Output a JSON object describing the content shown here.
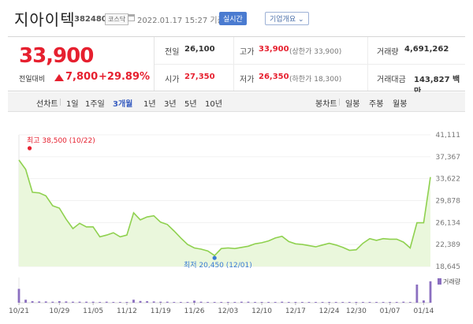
{
  "header": {
    "title": "지아이텍",
    "code": "382480",
    "market": "코스닥",
    "datetime": "2022.01.17 15:27 기준(장중)",
    "live_label": "실시간",
    "corp_label": "기업개요 ⌄"
  },
  "quote": {
    "price": "33,900",
    "change_label": "전일대비",
    "change": "7,800",
    "change_pct": "+29.89%",
    "prev_label": "전일",
    "prev": "26,100",
    "high_label": "고가",
    "high": "33,900",
    "upper_limit": "(상한가 33,900)",
    "volume_label": "거래량",
    "volume": "4,691,262",
    "open_label": "시가",
    "open": "27,350",
    "low_label": "저가",
    "low": "26,350",
    "lower_limit": "(하한가 18,300)",
    "amount_label": "거래대금",
    "amount": "143,827 백만"
  },
  "tabs": {
    "line_label": "선차트",
    "periods": [
      "1일",
      "1주일",
      "3개월",
      "1년",
      "3년",
      "5년",
      "10년"
    ],
    "active_period": "3개월",
    "candle_label": "봉차트",
    "candle_periods": [
      "일봉",
      "주봉",
      "월봉"
    ]
  },
  "colors": {
    "up": "#e6202f",
    "line": "#8fd14f",
    "area": "#eaf7dc",
    "volume": "#8b6fc0",
    "accent": "#3a5fc1"
  },
  "chart_data": {
    "type": "area",
    "title": "",
    "xlabel": "",
    "ylabel": "",
    "ylim": [
      18645,
      41111
    ],
    "y_ticks": [
      "41,111",
      "37,367",
      "33,622",
      "29,878",
      "26,134",
      "22,389",
      "18,645"
    ],
    "x_ticks": [
      "10/21",
      "10/29",
      "11/05",
      "11/12",
      "11/19",
      "11/26",
      "12/03",
      "12/10",
      "12/17",
      "12/24",
      "12/30",
      "01/07",
      "01/14"
    ],
    "max_label": "최고 38,500 (10/22)",
    "min_label": "최저 20,450 (12/01)",
    "volume_label": "거래량",
    "series": [
      {
        "name": "",
        "dates": [
          "10/21",
          "10/22",
          "10/25",
          "10/26",
          "10/27",
          "10/28",
          "10/29",
          "11/01",
          "11/02",
          "11/03",
          "11/04",
          "11/05",
          "11/08",
          "11/09",
          "11/10",
          "11/11",
          "11/12",
          "11/15",
          "11/16",
          "11/17",
          "11/18",
          "11/19",
          "11/22",
          "11/23",
          "11/24",
          "11/25",
          "11/26",
          "11/29",
          "11/30",
          "12/01",
          "12/02",
          "12/03",
          "12/06",
          "12/07",
          "12/08",
          "12/09",
          "12/10",
          "12/13",
          "12/14",
          "12/15",
          "12/16",
          "12/17",
          "12/20",
          "12/21",
          "12/22",
          "12/23",
          "12/24",
          "12/27",
          "12/28",
          "12/29",
          "12/30",
          "01/03",
          "01/04",
          "01/05",
          "01/06",
          "01/07",
          "01/10",
          "01/11",
          "01/12",
          "01/13",
          "01/14",
          "01/17"
        ],
        "values": [
          36800,
          35200,
          31300,
          31200,
          30700,
          29000,
          28600,
          26700,
          25100,
          26000,
          25400,
          25400,
          23700,
          24000,
          24400,
          23700,
          24000,
          27800,
          26600,
          27100,
          27300,
          26200,
          25800,
          24700,
          23500,
          22400,
          21800,
          21600,
          21300,
          20500,
          21700,
          21800,
          21700,
          21900,
          22100,
          22500,
          22700,
          23000,
          23500,
          23800,
          22900,
          22500,
          22400,
          22200,
          22000,
          22300,
          22600,
          22300,
          21900,
          21400,
          21500,
          22600,
          23400,
          23100,
          23400,
          23300,
          23300,
          22800,
          21800,
          26100,
          26100,
          33900
        ]
      }
    ],
    "volume": [
      0.55,
      0.12,
      0.06,
      0.05,
      0.05,
      0.04,
      0.06,
      0.05,
      0.04,
      0.04,
      0.04,
      0.04,
      0.03,
      0.04,
      0.03,
      0.03,
      0.03,
      0.12,
      0.07,
      0.06,
      0.05,
      0.04,
      0.04,
      0.03,
      0.03,
      0.03,
      0.08,
      0.04,
      0.03,
      0.03,
      0.03,
      0.03,
      0.03,
      0.04,
      0.04,
      0.03,
      0.03,
      0.03,
      0.03,
      0.04,
      0.03,
      0.03,
      0.03,
      0.03,
      0.03,
      0.03,
      0.03,
      0.03,
      0.03,
      0.03,
      0.03,
      0.03,
      0.03,
      0.03,
      0.03,
      0.03,
      0.03,
      0.04,
      0.03,
      0.72,
      0.09,
      0.85
    ]
  }
}
